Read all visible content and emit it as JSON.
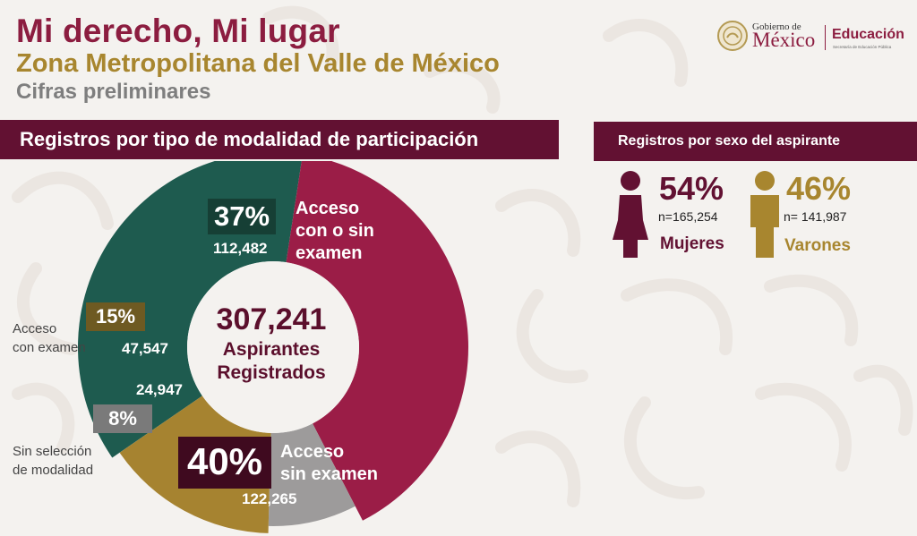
{
  "header": {
    "title": "Mi derecho, Mi lugar",
    "subtitle": "Zona Metropolitana del Valle de México",
    "note": "Cifras preliminares"
  },
  "logo": {
    "gobierno": "Gobierno de",
    "mexico": "México",
    "educacion": "Educación",
    "secretaria": "Secretaría de Educación Pública"
  },
  "colors": {
    "wine": "#9b1d47",
    "wine_dark": "#621132",
    "green": "#1e5b4f",
    "olive": "#a68330",
    "gray": "#9d9b9b",
    "gold": "#a8862f"
  },
  "chart_data": [
    {
      "type": "pie",
      "title": "Registros por tipo de modalidad de participación",
      "center_value": "307,241",
      "center_label_1": "Aspirantes",
      "center_label_2": "Registrados",
      "series": [
        {
          "name": "Acceso con o sin examen",
          "percent": 37,
          "percent_label": "37%",
          "count_label": "112,482",
          "color": "#1e5b4f"
        },
        {
          "name": "Acceso sin examen",
          "percent": 40,
          "percent_label": "40%",
          "count_label": "122,265",
          "color": "#9b1d47"
        },
        {
          "name": "Sin selección de modalidad",
          "percent": 8,
          "percent_label": "8%",
          "count_label": "24,947",
          "color": "#9d9b9b"
        },
        {
          "name": "Acceso con examen",
          "percent": 15,
          "percent_label": "15%",
          "count_label": "47,547",
          "color": "#a68330"
        }
      ]
    },
    {
      "type": "pictograph",
      "title": "Registros por sexo  del aspirante",
      "series": [
        {
          "name": "Mujeres",
          "percent": 54,
          "percent_label": "54%",
          "count_label": "n=165,254",
          "color": "#621132",
          "icon": "woman-icon"
        },
        {
          "name": "Varones",
          "percent": 46,
          "percent_label": "46%",
          "count_label": "n= 141,987",
          "color": "#a8862f",
          "icon": "man-icon"
        }
      ]
    }
  ],
  "labels": {
    "acceso_con_o_sin_1": "Acceso",
    "acceso_con_o_sin_2": "con o sin",
    "acceso_con_o_sin_3": "examen",
    "acceso_sin_1": "Acceso",
    "acceso_sin_2": "sin examen",
    "acceso_con_1": "Acceso",
    "acceso_con_2": "con examen",
    "sin_sel_1": "Sin selección",
    "sin_sel_2": "de modalidad"
  }
}
